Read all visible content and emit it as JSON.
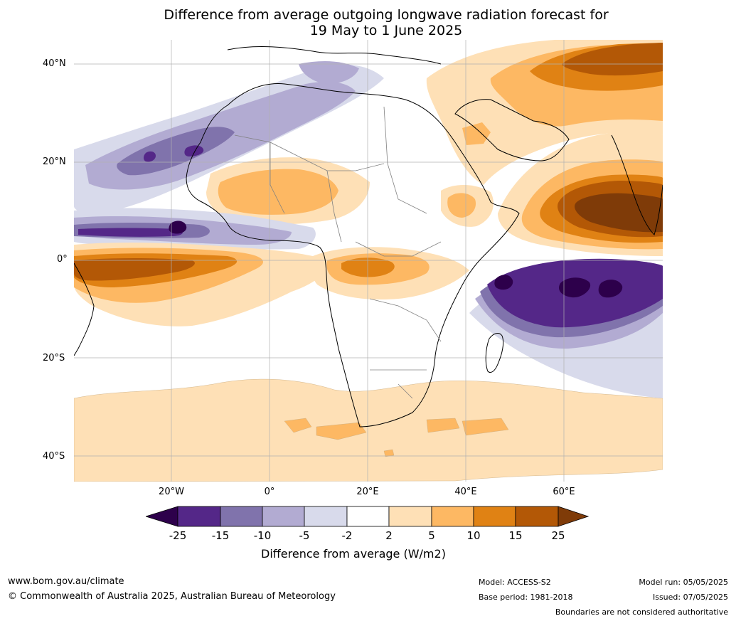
{
  "title": {
    "line1": "Difference from average outgoing longwave radiation forecast for",
    "line2": "19 May to 1 June 2025"
  },
  "map": {
    "lat_labels": [
      "40°N",
      "20°N",
      "0°",
      "20°S",
      "40°S"
    ],
    "lon_labels": [
      "20°W",
      "0°",
      "20°E",
      "40°E",
      "60°E"
    ],
    "colors": {
      "deep_purple": "#2d004b",
      "purple_15_25": "#542788",
      "purple_10_15": "#8073ac",
      "purple_5_10": "#b2abd2",
      "purple_2_5": "#d8daeb",
      "neutral": "#ffffff",
      "orange_2_5": "#fee0b6",
      "orange_5_10": "#fdb863",
      "orange_10_15": "#e08214",
      "orange_15_25": "#b35806",
      "deep_brown": "#7f3b08"
    }
  },
  "colorbar": {
    "ticks": [
      "-25",
      "-15",
      "-10",
      "-5",
      "-2",
      "2",
      "5",
      "10",
      "15",
      "25"
    ],
    "label": "Difference from average (W/m2)"
  },
  "footer": {
    "website": "www.bom.gov.au/climate",
    "copyright": "© Commonwealth of Australia 2025, Australian Bureau of Meteorology",
    "model": "Model: ACCESS-S2",
    "base_period": "Base period: 1981-2018",
    "model_run": "Model run: 05/05/2025",
    "issued": "Issued: 07/05/2025",
    "disclaimer": "Boundaries are not considered authoritative"
  }
}
